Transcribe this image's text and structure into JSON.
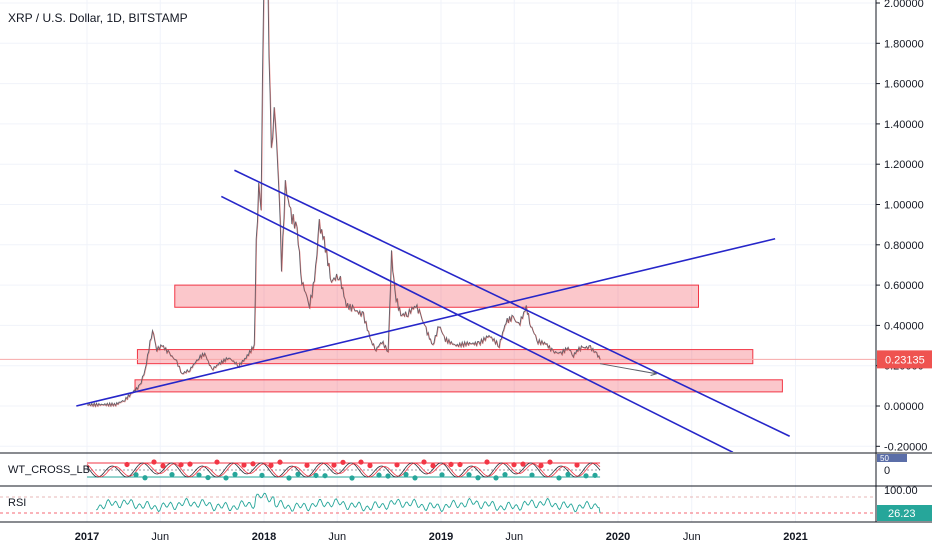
{
  "chart_data": {
    "type": "line",
    "title": "XRP / U.S. Dollar, 1D, BITSTAMP",
    "symbol": "XRP / U.S. Dollar",
    "interval": "1D",
    "exchange": "BITSTAMP",
    "last_price": "0.23135",
    "y_ticks": [
      "2.00000",
      "1.80000",
      "1.60000",
      "1.40000",
      "1.20000",
      "1.00000",
      "0.80000",
      "0.60000",
      "0.40000",
      "0.20000",
      "0.00000",
      "-0.20000"
    ],
    "ylim": [
      -0.2,
      2.0
    ],
    "x_ticks": [
      {
        "label": "2017",
        "bold": true
      },
      {
        "label": "Jun",
        "bold": false
      },
      {
        "label": "2018",
        "bold": true
      },
      {
        "label": "Jun",
        "bold": false
      },
      {
        "label": "2019",
        "bold": true
      },
      {
        "label": "Jun",
        "bold": false
      },
      {
        "label": "2020",
        "bold": true
      },
      {
        "label": "Jun",
        "bold": false
      },
      {
        "label": "2021",
        "bold": true
      }
    ],
    "price_series": [
      {
        "x": "2017-01-01",
        "y": 0.006
      },
      {
        "x": "2017-03-01",
        "y": 0.008
      },
      {
        "x": "2017-03-20",
        "y": 0.03
      },
      {
        "x": "2017-04-01",
        "y": 0.06
      },
      {
        "x": "2017-04-20",
        "y": 0.1
      },
      {
        "x": "2017-05-01",
        "y": 0.18
      },
      {
        "x": "2017-05-16",
        "y": 0.38
      },
      {
        "x": "2017-05-25",
        "y": 0.28
      },
      {
        "x": "2017-06-05",
        "y": 0.3
      },
      {
        "x": "2017-06-20",
        "y": 0.26
      },
      {
        "x": "2017-07-05",
        "y": 0.22
      },
      {
        "x": "2017-07-16",
        "y": 0.16
      },
      {
        "x": "2017-08-01",
        "y": 0.18
      },
      {
        "x": "2017-08-20",
        "y": 0.24
      },
      {
        "x": "2017-09-01",
        "y": 0.26
      },
      {
        "x": "2017-09-15",
        "y": 0.18
      },
      {
        "x": "2017-10-01",
        "y": 0.21
      },
      {
        "x": "2017-10-20",
        "y": 0.24
      },
      {
        "x": "2017-11-10",
        "y": 0.2
      },
      {
        "x": "2017-11-25",
        "y": 0.24
      },
      {
        "x": "2017-12-12",
        "y": 0.3
      },
      {
        "x": "2017-12-16",
        "y": 0.8
      },
      {
        "x": "2017-12-21",
        "y": 1.1
      },
      {
        "x": "2017-12-26",
        "y": 1.0
      },
      {
        "x": "2018-01-01",
        "y": 2.2
      },
      {
        "x": "2018-01-04",
        "y": 2.95
      },
      {
        "x": "2018-01-09",
        "y": 2.05
      },
      {
        "x": "2018-01-16",
        "y": 1.25
      },
      {
        "x": "2018-01-22",
        "y": 1.5
      },
      {
        "x": "2018-02-01",
        "y": 1.1
      },
      {
        "x": "2018-02-06",
        "y": 0.68
      },
      {
        "x": "2018-02-14",
        "y": 1.1
      },
      {
        "x": "2018-02-25",
        "y": 0.95
      },
      {
        "x": "2018-03-10",
        "y": 0.88
      },
      {
        "x": "2018-03-20",
        "y": 0.62
      },
      {
        "x": "2018-04-05",
        "y": 0.5
      },
      {
        "x": "2018-04-15",
        "y": 0.62
      },
      {
        "x": "2018-04-25",
        "y": 0.9
      },
      {
        "x": "2018-05-05",
        "y": 0.82
      },
      {
        "x": "2018-05-20",
        "y": 0.62
      },
      {
        "x": "2018-06-05",
        "y": 0.65
      },
      {
        "x": "2018-06-20",
        "y": 0.5
      },
      {
        "x": "2018-07-05",
        "y": 0.48
      },
      {
        "x": "2018-07-25",
        "y": 0.45
      },
      {
        "x": "2018-08-10",
        "y": 0.32
      },
      {
        "x": "2018-08-20",
        "y": 0.28
      },
      {
        "x": "2018-09-01",
        "y": 0.32
      },
      {
        "x": "2018-09-14",
        "y": 0.27
      },
      {
        "x": "2018-09-21",
        "y": 0.75
      },
      {
        "x": "2018-09-28",
        "y": 0.56
      },
      {
        "x": "2018-10-10",
        "y": 0.45
      },
      {
        "x": "2018-10-25",
        "y": 0.46
      },
      {
        "x": "2018-11-10",
        "y": 0.5
      },
      {
        "x": "2018-11-20",
        "y": 0.45
      },
      {
        "x": "2018-12-01",
        "y": 0.38
      },
      {
        "x": "2018-12-15",
        "y": 0.3
      },
      {
        "x": "2018-12-28",
        "y": 0.4
      },
      {
        "x": "2019-01-10",
        "y": 0.33
      },
      {
        "x": "2019-02-01",
        "y": 0.3
      },
      {
        "x": "2019-02-24",
        "y": 0.31
      },
      {
        "x": "2019-03-20",
        "y": 0.31
      },
      {
        "x": "2019-04-10",
        "y": 0.35
      },
      {
        "x": "2019-05-01",
        "y": 0.3
      },
      {
        "x": "2019-05-15",
        "y": 0.42
      },
      {
        "x": "2019-05-30",
        "y": 0.44
      },
      {
        "x": "2019-06-10",
        "y": 0.4
      },
      {
        "x": "2019-06-26",
        "y": 0.49
      },
      {
        "x": "2019-07-05",
        "y": 0.4
      },
      {
        "x": "2019-07-20",
        "y": 0.32
      },
      {
        "x": "2019-08-05",
        "y": 0.31
      },
      {
        "x": "2019-08-20",
        "y": 0.27
      },
      {
        "x": "2019-09-05",
        "y": 0.26
      },
      {
        "x": "2019-09-20",
        "y": 0.29
      },
      {
        "x": "2019-10-01",
        "y": 0.25
      },
      {
        "x": "2019-10-10",
        "y": 0.28
      },
      {
        "x": "2019-10-20",
        "y": 0.29
      },
      {
        "x": "2019-11-05",
        "y": 0.29
      },
      {
        "x": "2019-11-18",
        "y": 0.26
      },
      {
        "x": "2019-11-25",
        "y": 0.2313
      }
    ],
    "trendlines": [
      {
        "from": {
          "x": "2016-12-10",
          "y": 0.0
        },
        "to": {
          "x": "2020-11-20",
          "y": 0.83
        }
      },
      {
        "from": {
          "x": "2017-10-05",
          "y": 1.04
        },
        "to": {
          "x": "2020-08-25",
          "y": -0.23
        }
      },
      {
        "from": {
          "x": "2017-11-01",
          "y": 1.17
        },
        "to": {
          "x": "2020-12-20",
          "y": -0.15
        }
      },
      {
        "from": {
          "x": "2019-11-25",
          "y": 0.21
        },
        "to": {
          "x": "2020-03-20",
          "y": 0.16
        }
      }
    ],
    "zones": [
      {
        "from": "2017-07-01",
        "to": "2020-06-15",
        "y_high": 0.6,
        "y_low": 0.49
      },
      {
        "from": "2017-04-15",
        "to": "2020-10-05",
        "y_high": 0.28,
        "y_low": 0.21
      },
      {
        "from": "2017-04-10",
        "to": "2020-12-05",
        "y_high": 0.13,
        "y_low": 0.07
      }
    ],
    "indicators": [
      {
        "name": "WT_CROSS_LB",
        "value": "0",
        "scale_label": "50"
      },
      {
        "name": "RSI",
        "value": "26.23",
        "scale_label": "100.00"
      }
    ]
  }
}
